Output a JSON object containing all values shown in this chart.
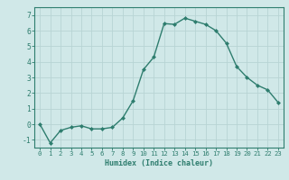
{
  "x": [
    0,
    1,
    2,
    3,
    4,
    5,
    6,
    7,
    8,
    9,
    10,
    11,
    12,
    13,
    14,
    15,
    16,
    17,
    18,
    19,
    20,
    21,
    22,
    23
  ],
  "y": [
    0.0,
    -1.2,
    -0.4,
    -0.2,
    -0.1,
    -0.3,
    -0.3,
    -0.2,
    0.4,
    1.5,
    3.5,
    4.3,
    6.45,
    6.4,
    6.8,
    6.6,
    6.4,
    6.0,
    5.2,
    3.7,
    3.0,
    2.5,
    2.2,
    1.4
  ],
  "line_color": "#2e7d6e",
  "marker": "D",
  "marker_size": 2.0,
  "xlabel": "Humidex (Indice chaleur)",
  "xlim": [
    -0.5,
    23.5
  ],
  "ylim": [
    -1.5,
    7.5
  ],
  "yticks": [
    -1,
    0,
    1,
    2,
    3,
    4,
    5,
    6,
    7
  ],
  "xticks": [
    0,
    1,
    2,
    3,
    4,
    5,
    6,
    7,
    8,
    9,
    10,
    11,
    12,
    13,
    14,
    15,
    16,
    17,
    18,
    19,
    20,
    21,
    22,
    23
  ],
  "bg_color": "#d0e8e8",
  "grid_color": "#b8d4d4",
  "text_color": "#2e7d6e",
  "spine_color": "#2e7d6e",
  "xlabel_fontsize": 6.0,
  "tick_fontsize_x": 5.2,
  "tick_fontsize_y": 5.8
}
